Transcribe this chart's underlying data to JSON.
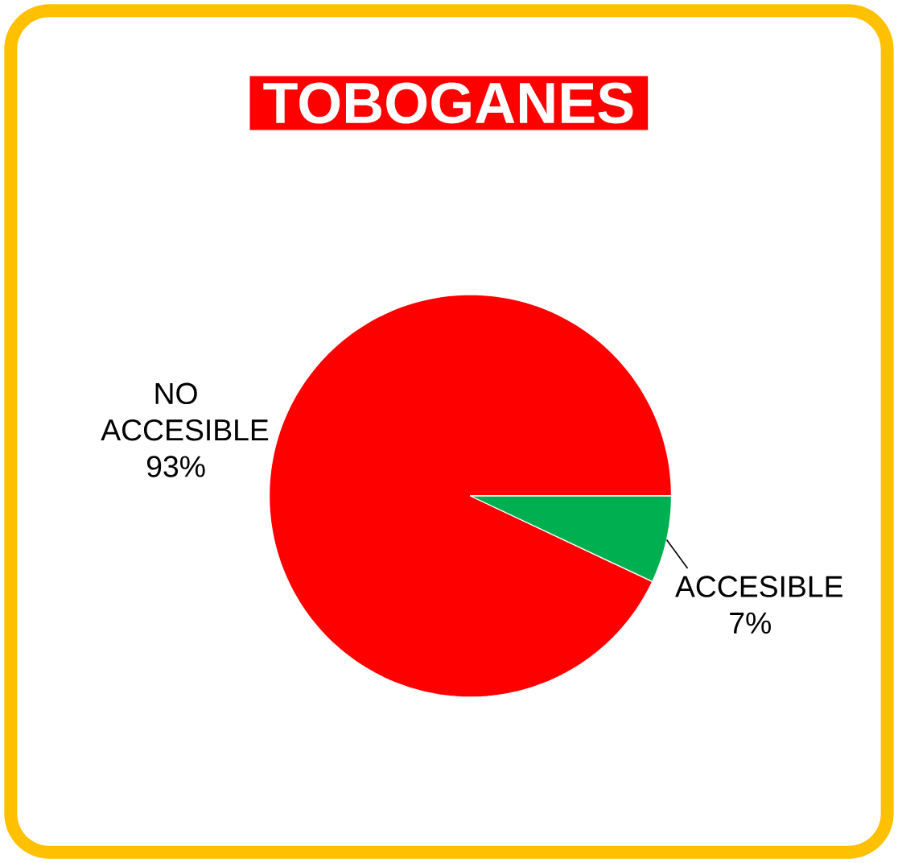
{
  "chart_data": {
    "type": "pie",
    "title": "TOBOGANES",
    "categories": [
      "NO ACCESIBLE",
      "ACCESIBLE"
    ],
    "values": [
      93,
      7
    ],
    "value_labels": [
      "93%",
      "7%"
    ],
    "colors": [
      "#ff0000",
      "#00b050"
    ]
  }
}
